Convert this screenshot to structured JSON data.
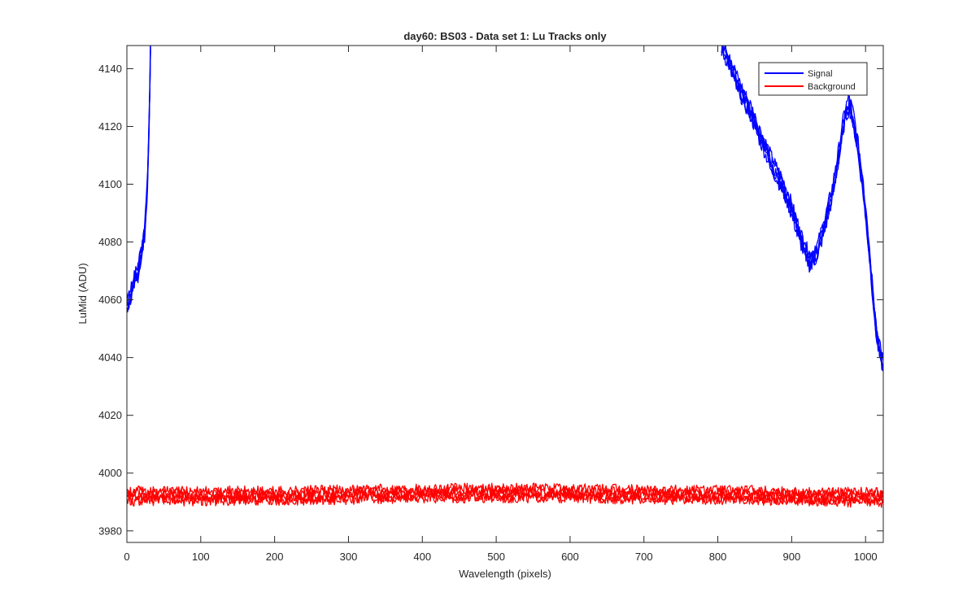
{
  "chart_data": {
    "type": "line",
    "title": "day60: BS03 - Data set 1: Lu Tracks only",
    "xlabel": "Wavelength (pixels)",
    "ylabel": "LuMid (ADU)",
    "xlim": [
      0,
      1024
    ],
    "ylim": [
      3976,
      4148
    ],
    "xticks": [
      0,
      100,
      200,
      300,
      400,
      500,
      600,
      700,
      800,
      900,
      1000
    ],
    "yticks": [
      3980,
      4000,
      4020,
      4040,
      4060,
      4080,
      4100,
      4120,
      4140
    ],
    "grid": false,
    "legend_position": "top-right",
    "series": [
      {
        "name": "Signal",
        "color": "#0000ff",
        "segments": [
          [
            [
              0,
              4058
            ],
            [
              5,
              4062
            ],
            [
              10,
              4066
            ],
            [
              15,
              4070
            ],
            [
              20,
              4077
            ],
            [
              24,
              4084
            ],
            [
              27,
              4095
            ],
            [
              29,
              4110
            ],
            [
              31,
              4132
            ],
            [
              32,
              4148
            ]
          ],
          [
            [
              805,
              4148
            ],
            [
              815,
              4143
            ],
            [
              825,
              4136
            ],
            [
              835,
              4130
            ],
            [
              845,
              4125
            ],
            [
              855,
              4118
            ],
            [
              865,
              4112
            ],
            [
              875,
              4106
            ],
            [
              885,
              4101
            ],
            [
              895,
              4095
            ],
            [
              905,
              4087
            ],
            [
              915,
              4079
            ],
            [
              925,
              4073
            ],
            [
              935,
              4077
            ],
            [
              945,
              4086
            ],
            [
              955,
              4097
            ],
            [
              965,
              4112
            ],
            [
              972,
              4124
            ],
            [
              978,
              4128
            ],
            [
              984,
              4122
            ],
            [
              990,
              4112
            ],
            [
              997,
              4098
            ],
            [
              1004,
              4080
            ],
            [
              1010,
              4062
            ],
            [
              1015,
              4048
            ],
            [
              1020,
              4041
            ],
            [
              1024,
              4038
            ]
          ]
        ]
      },
      {
        "name": "Background",
        "color": "#ff0000",
        "segments": [
          [
            [
              0,
              3992
            ],
            [
              100,
              3992
            ],
            [
              200,
              3992
            ],
            [
              300,
              3992.5
            ],
            [
              400,
              3993
            ],
            [
              500,
              3993
            ],
            [
              600,
              3993
            ],
            [
              700,
              3992.5
            ],
            [
              800,
              3992.5
            ],
            [
              900,
              3992
            ],
            [
              1000,
              3991.5
            ],
            [
              1024,
              3991.5
            ]
          ]
        ]
      }
    ]
  }
}
